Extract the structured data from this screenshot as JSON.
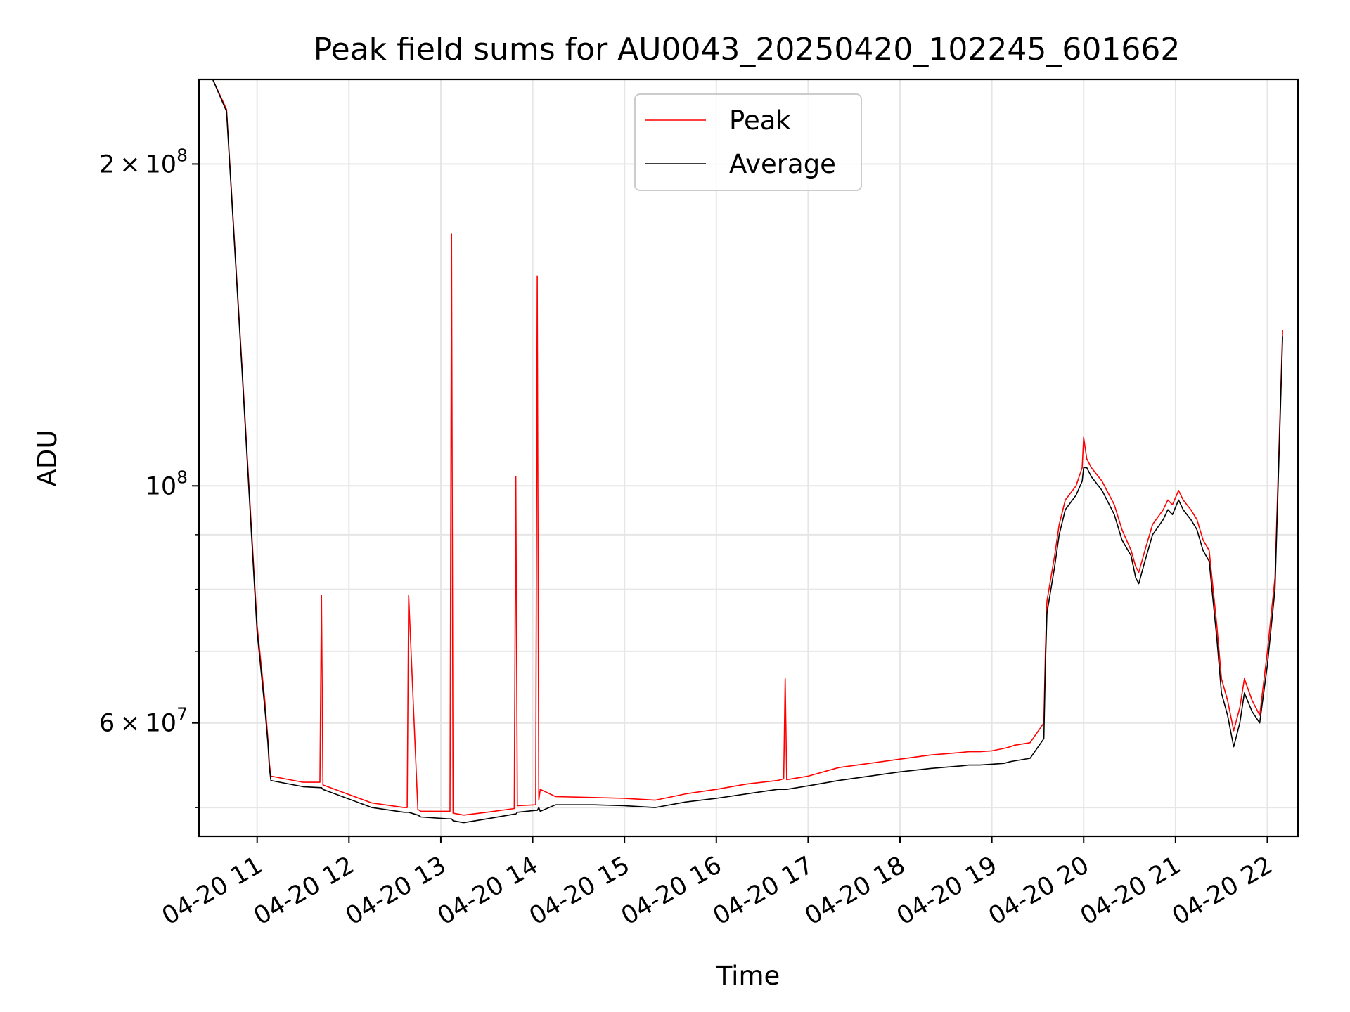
{
  "chart_data": {
    "type": "line",
    "title": "Peak field sums for AU0043_20250420_102245_601662",
    "xlabel": "Time",
    "ylabel": "ADU",
    "yscale": "log",
    "grid": true,
    "legend_position": "top-center",
    "x_ticks": [
      "2025-04-20 11:00",
      "2025-04-20 12:00",
      "2025-04-20 13:00",
      "2025-04-20 14:00",
      "2025-04-20 15:00",
      "2025-04-20 16:00",
      "2025-04-20 17:00",
      "2025-04-20 18:00",
      "2025-04-20 19:00",
      "2025-04-20 20:00",
      "2025-04-20 21:00",
      "2025-04-20 22:00"
    ],
    "x_tick_labels": [
      "04-20 11",
      "04-20 12",
      "04-20 13",
      "04-20 14",
      "04-20 15",
      "04-20 16",
      "04-20 17",
      "04-20 18",
      "04-20 19",
      "04-20 20",
      "04-20 21",
      "04-20 22"
    ],
    "xlim": [
      "2025-04-20 10:22",
      "2025-04-20 22:20"
    ],
    "ylim": [
      47000000,
      240000000
    ],
    "y_major_ticks": [
      {
        "value": 60000000,
        "base": "6",
        "exp": "7"
      },
      {
        "value": 100000000,
        "base": "",
        "exp": "8"
      },
      {
        "value": 200000000,
        "base": "2",
        "exp": "8"
      }
    ],
    "y_minor_ticks": [
      50000000,
      70000000,
      80000000,
      90000000
    ],
    "series": [
      {
        "name": "Peak",
        "color": "#ff0000",
        "x": [
          "2025-04-20 10:31",
          "2025-04-20 10:40",
          "2025-04-20 10:50",
          "2025-04-20 11:00",
          "2025-04-20 11:05",
          "2025-04-20 11:07",
          "2025-04-20 11:08",
          "2025-04-20 11:09",
          "2025-04-20 11:30",
          "2025-04-20 11:41",
          "2025-04-20 11:42",
          "2025-04-20 11:43",
          "2025-04-20 12:15",
          "2025-04-20 12:36",
          "2025-04-20 12:38",
          "2025-04-20 12:39",
          "2025-04-20 12:45",
          "2025-04-20 12:46",
          "2025-04-20 12:47",
          "2025-04-20 13:05",
          "2025-04-20 13:06",
          "2025-04-20 13:07",
          "2025-04-20 13:08",
          "2025-04-20 13:15",
          "2025-04-20 13:30",
          "2025-04-20 13:48",
          "2025-04-20 13:49",
          "2025-04-20 13:50",
          "2025-04-20 14:02",
          "2025-04-20 14:03",
          "2025-04-20 14:04",
          "2025-04-20 14:05",
          "2025-04-20 14:15",
          "2025-04-20 14:40",
          "2025-04-20 15:00",
          "2025-04-20 15:20",
          "2025-04-20 15:40",
          "2025-04-20 16:00",
          "2025-04-20 16:20",
          "2025-04-20 16:40",
          "2025-04-20 16:44",
          "2025-04-20 16:45",
          "2025-04-20 16:46",
          "2025-04-20 17:00",
          "2025-04-20 17:20",
          "2025-04-20 17:40",
          "2025-04-20 18:00",
          "2025-04-20 18:20",
          "2025-04-20 18:40",
          "2025-04-20 18:45",
          "2025-04-20 18:52",
          "2025-04-20 19:00",
          "2025-04-20 19:08",
          "2025-04-20 19:12",
          "2025-04-20 19:15",
          "2025-04-20 19:25",
          "2025-04-20 19:34",
          "2025-04-20 19:35",
          "2025-04-20 19:36",
          "2025-04-20 19:41",
          "2025-04-20 19:44",
          "2025-04-20 19:48",
          "2025-04-20 19:55",
          "2025-04-20 19:59",
          "2025-04-20 20:00",
          "2025-04-20 20:02",
          "2025-04-20 20:05",
          "2025-04-20 20:12",
          "2025-04-20 20:20",
          "2025-04-20 20:25",
          "2025-04-20 20:31",
          "2025-04-20 20:34",
          "2025-04-20 20:36",
          "2025-04-20 20:40",
          "2025-04-20 20:45",
          "2025-04-20 20:52",
          "2025-04-20 20:55",
          "2025-04-20 20:58",
          "2025-04-20 21:02",
          "2025-04-20 21:05",
          "2025-04-20 21:10",
          "2025-04-20 21:14",
          "2025-04-20 21:18",
          "2025-04-20 21:22",
          "2025-04-20 21:27",
          "2025-04-20 21:30",
          "2025-04-20 21:34",
          "2025-04-20 21:38",
          "2025-04-20 21:42",
          "2025-04-20 21:45",
          "2025-04-20 21:50",
          "2025-04-20 21:55",
          "2025-04-20 22:00",
          "2025-04-20 22:05",
          "2025-04-20 22:10"
        ],
        "y": [
          240000000,
          225000000,
          130000000,
          74000000,
          63000000,
          58000000,
          55000000,
          53500000,
          52800000,
          52800000,
          79000000,
          52500000,
          50500000,
          50000000,
          50000000,
          79000000,
          49800000,
          49700000,
          49600000,
          49600000,
          49600000,
          172000000,
          49400000,
          49200000,
          49500000,
          49900000,
          102000000,
          50200000,
          50300000,
          157000000,
          50800000,
          52000000,
          51200000,
          51100000,
          51000000,
          50800000,
          51500000,
          52000000,
          52600000,
          53000000,
          53200000,
          66000000,
          53100000,
          53500000,
          54500000,
          55000000,
          55500000,
          56000000,
          56300000,
          56400000,
          56400000,
          56500000,
          56800000,
          57000000,
          57200000,
          57500000,
          60000000,
          70000000,
          78000000,
          86000000,
          92000000,
          97000000,
          100000000,
          104000000,
          111000000,
          106000000,
          104000000,
          101000000,
          96000000,
          91000000,
          87000000,
          84000000,
          83000000,
          87000000,
          92000000,
          95000000,
          97000000,
          96000000,
          99000000,
          97000000,
          95000000,
          93000000,
          89000000,
          87000000,
          74000000,
          66000000,
          63000000,
          59000000,
          62000000,
          66000000,
          63000000,
          61000000,
          70000000,
          82000000,
          140000000
        ]
      },
      {
        "name": "Average",
        "color": "#000000",
        "x": [
          "2025-04-20 10:31",
          "2025-04-20 10:40",
          "2025-04-20 10:50",
          "2025-04-20 11:00",
          "2025-04-20 11:05",
          "2025-04-20 11:07",
          "2025-04-20 11:08",
          "2025-04-20 11:09",
          "2025-04-20 11:30",
          "2025-04-20 11:41",
          "2025-04-20 11:42",
          "2025-04-20 11:43",
          "2025-04-20 12:15",
          "2025-04-20 12:36",
          "2025-04-20 12:38",
          "2025-04-20 12:39",
          "2025-04-20 12:45",
          "2025-04-20 12:46",
          "2025-04-20 12:47",
          "2025-04-20 13:05",
          "2025-04-20 13:06",
          "2025-04-20 13:07",
          "2025-04-20 13:08",
          "2025-04-20 13:15",
          "2025-04-20 13:30",
          "2025-04-20 13:48",
          "2025-04-20 13:49",
          "2025-04-20 13:50",
          "2025-04-20 14:02",
          "2025-04-20 14:03",
          "2025-04-20 14:04",
          "2025-04-20 14:05",
          "2025-04-20 14:15",
          "2025-04-20 14:40",
          "2025-04-20 15:00",
          "2025-04-20 15:20",
          "2025-04-20 15:40",
          "2025-04-20 16:00",
          "2025-04-20 16:20",
          "2025-04-20 16:40",
          "2025-04-20 16:44",
          "2025-04-20 16:45",
          "2025-04-20 16:46",
          "2025-04-20 17:00",
          "2025-04-20 17:20",
          "2025-04-20 17:40",
          "2025-04-20 18:00",
          "2025-04-20 18:20",
          "2025-04-20 18:40",
          "2025-04-20 18:45",
          "2025-04-20 18:52",
          "2025-04-20 19:00",
          "2025-04-20 19:08",
          "2025-04-20 19:12",
          "2025-04-20 19:15",
          "2025-04-20 19:25",
          "2025-04-20 19:34",
          "2025-04-20 19:35",
          "2025-04-20 19:36",
          "2025-04-20 19:41",
          "2025-04-20 19:44",
          "2025-04-20 19:48",
          "2025-04-20 19:55",
          "2025-04-20 19:59",
          "2025-04-20 20:00",
          "2025-04-20 20:02",
          "2025-04-20 20:05",
          "2025-04-20 20:12",
          "2025-04-20 20:20",
          "2025-04-20 20:25",
          "2025-04-20 20:31",
          "2025-04-20 20:34",
          "2025-04-20 20:36",
          "2025-04-20 20:40",
          "2025-04-20 20:45",
          "2025-04-20 20:52",
          "2025-04-20 20:55",
          "2025-04-20 20:58",
          "2025-04-20 21:02",
          "2025-04-20 21:05",
          "2025-04-20 21:10",
          "2025-04-20 21:14",
          "2025-04-20 21:18",
          "2025-04-20 21:22",
          "2025-04-20 21:27",
          "2025-04-20 21:30",
          "2025-04-20 21:34",
          "2025-04-20 21:38",
          "2025-04-20 21:42",
          "2025-04-20 21:45",
          "2025-04-20 21:50",
          "2025-04-20 21:55",
          "2025-04-20 22:00",
          "2025-04-20 22:05",
          "2025-04-20 22:10"
        ],
        "y": [
          240000000,
          224000000,
          129000000,
          73000000,
          62000000,
          57500000,
          54500000,
          53000000,
          52300000,
          52200000,
          52200000,
          52000000,
          50000000,
          49500000,
          49500000,
          49500000,
          49200000,
          49100000,
          49000000,
          48800000,
          48800000,
          48800000,
          48600000,
          48400000,
          48800000,
          49300000,
          49300000,
          49500000,
          49700000,
          49700000,
          50000000,
          49600000,
          50300000,
          50300000,
          50200000,
          50000000,
          50600000,
          51000000,
          51500000,
          52000000,
          52000000,
          52000000,
          52000000,
          52400000,
          53000000,
          53500000,
          54000000,
          54400000,
          54700000,
          54800000,
          54800000,
          54900000,
          55000000,
          55200000,
          55300000,
          55600000,
          58000000,
          68000000,
          76000000,
          84000000,
          90000000,
          95000000,
          98000000,
          101000000,
          104000000,
          104000000,
          102000000,
          99000000,
          94000000,
          89000000,
          86000000,
          82000000,
          81000000,
          85000000,
          90000000,
          93000000,
          95000000,
          94000000,
          97000000,
          95000000,
          93000000,
          91000000,
          87000000,
          85000000,
          72000000,
          64000000,
          61000000,
          57000000,
          60000000,
          64000000,
          61500000,
          60000000,
          68000000,
          80000000,
          138000000
        ]
      }
    ]
  }
}
